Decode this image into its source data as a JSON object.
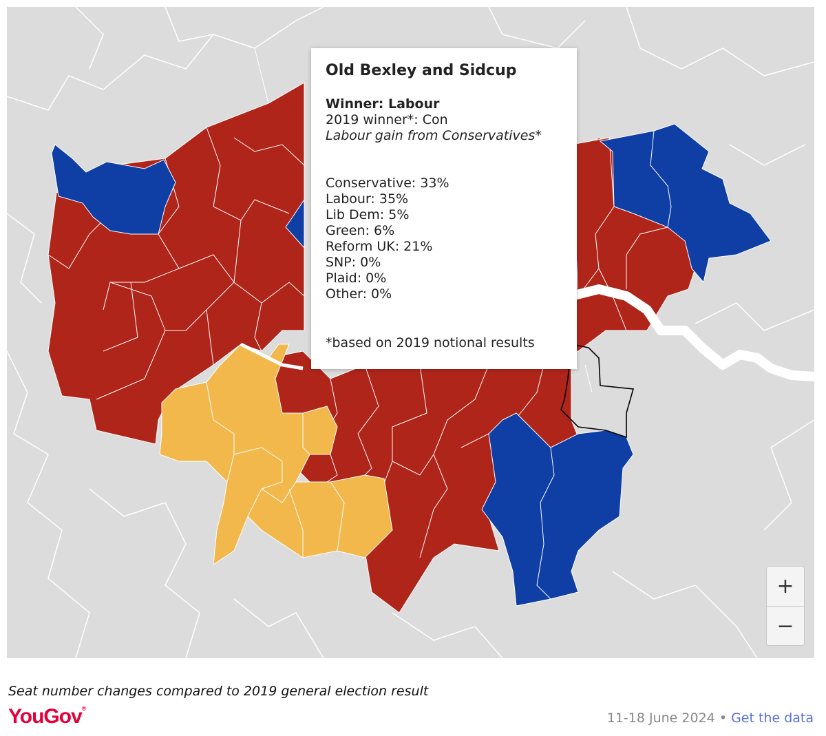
{
  "map": {
    "colors": {
      "background": "#dcdcdc",
      "boundary": "#ffffff",
      "labour": "#b0251a",
      "conservative": "#0f3ea5",
      "lib_dem": "#f2b84b",
      "river": "#ffffff",
      "selected_outline": "#000000"
    }
  },
  "tooltip": {
    "title": "Old Bexley and Sidcup",
    "winner": "Winner: Labour",
    "prev_winner": "2019 winner*: Con",
    "gain": "Labour gain from Conservatives*",
    "results": [
      "Conservative: 33%",
      "Labour: 35%",
      "Lib Dem: 5%",
      "Green: 6%",
      "Reform UK: 21%",
      "SNP: 0%",
      "Plaid: 0%",
      "Other: 0%"
    ],
    "footnote": "*based on 2019 notional results"
  },
  "zoom": {
    "in_label": "+",
    "out_label": "−"
  },
  "caption": "Seat number changes compared to 2019 general election result",
  "brand": {
    "name": "YouGov",
    "mark": "®"
  },
  "footer": {
    "date": "11-18 June 2024",
    "separator": "•",
    "link": "Get the data"
  }
}
